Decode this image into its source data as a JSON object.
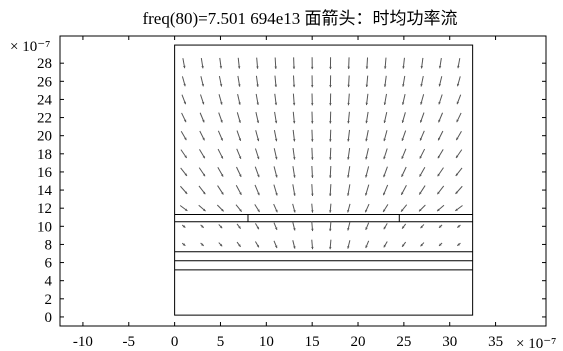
{
  "chart_data": {
    "type": "quiver",
    "title": "freq(80)=7.501 694e13    面箭头：时均功率流",
    "x_scale_label": "× 10⁻⁷",
    "y_scale_label": "× 10⁻⁷",
    "xlim": [
      -12.5,
      40.5
    ],
    "ylim": [
      -1,
      31
    ],
    "x_ticks": [
      -10,
      -5,
      0,
      5,
      10,
      15,
      20,
      25,
      30,
      35
    ],
    "y_ticks": [
      0,
      2,
      4,
      6,
      8,
      10,
      12,
      14,
      16,
      18,
      20,
      22,
      24,
      26,
      28
    ],
    "x_tick_labels": [
      "-10",
      "-5",
      "0",
      "5",
      "10",
      "15",
      "20",
      "25",
      "30",
      "35"
    ],
    "y_tick_labels": [
      "0",
      "2",
      "4",
      "6",
      "8",
      "10",
      "12",
      "14",
      "16",
      "18",
      "20",
      "22",
      "24",
      "26",
      "28"
    ],
    "domain_rect": {
      "x0": 0,
      "x1": 32.5,
      "y0": 0.2,
      "y1": 30
    },
    "layer_lines_y": [
      5.2,
      6.2,
      7.2,
      10.5,
      11.3
    ],
    "slot_lines": [
      {
        "x": 8.0,
        "y0": 10.5,
        "y1": 11.3
      },
      {
        "x": 24.5,
        "y0": 10.5,
        "y1": 11.3
      }
    ],
    "arrow_field": {
      "columns_x": [
        1,
        3,
        5,
        7,
        9,
        11,
        13,
        15,
        17,
        19,
        21,
        23,
        25,
        27,
        29,
        31
      ],
      "rows_y": [
        28,
        26,
        24,
        22,
        20,
        18,
        16,
        14,
        12,
        10,
        8
      ],
      "center_x": 16,
      "direction": "downward, fanning inward toward the center column in the upper region and converging toward the center slot near the layers"
    }
  }
}
